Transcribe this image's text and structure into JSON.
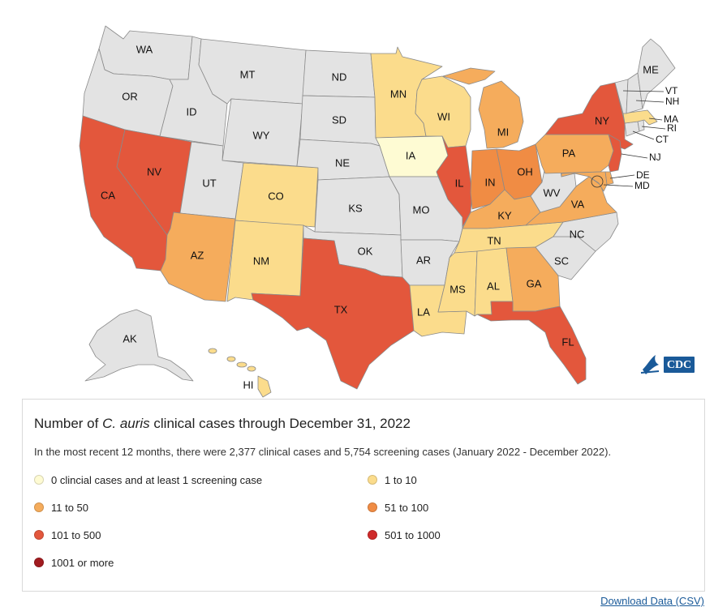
{
  "colors": {
    "no_data": "#e3e3e3",
    "zero_clinical": "#fefbd3",
    "range_1_10": "#fbdc8c",
    "range_11_50": "#f5ac5c",
    "range_51_100": "#f08c44",
    "range_101_500": "#e3573c",
    "range_501_1000": "#cf2a2a",
    "range_1001_plus": "#a11b1f"
  },
  "states": [
    {
      "abbr": "WA",
      "category": "none"
    },
    {
      "abbr": "OR",
      "category": "none"
    },
    {
      "abbr": "CA",
      "category": "101-500"
    },
    {
      "abbr": "NV",
      "category": "101-500"
    },
    {
      "abbr": "ID",
      "category": "none"
    },
    {
      "abbr": "MT",
      "category": "none"
    },
    {
      "abbr": "WY",
      "category": "none"
    },
    {
      "abbr": "UT",
      "category": "none"
    },
    {
      "abbr": "AZ",
      "category": "11-50"
    },
    {
      "abbr": "CO",
      "category": "1-10"
    },
    {
      "abbr": "NM",
      "category": "1-10"
    },
    {
      "abbr": "ND",
      "category": "none"
    },
    {
      "abbr": "SD",
      "category": "none"
    },
    {
      "abbr": "NE",
      "category": "none"
    },
    {
      "abbr": "KS",
      "category": "none"
    },
    {
      "abbr": "OK",
      "category": "none"
    },
    {
      "abbr": "TX",
      "category": "101-500"
    },
    {
      "abbr": "MN",
      "category": "1-10"
    },
    {
      "abbr": "IA",
      "category": "0 clinical"
    },
    {
      "abbr": "MO",
      "category": "none"
    },
    {
      "abbr": "AR",
      "category": "none"
    },
    {
      "abbr": "LA",
      "category": "1-10"
    },
    {
      "abbr": "WI",
      "category": "1-10"
    },
    {
      "abbr": "IL",
      "category": "101-500"
    },
    {
      "abbr": "MI",
      "category": "11-50"
    },
    {
      "abbr": "IN",
      "category": "51-100"
    },
    {
      "abbr": "OH",
      "category": "51-100"
    },
    {
      "abbr": "KY",
      "category": "11-50"
    },
    {
      "abbr": "TN",
      "category": "1-10"
    },
    {
      "abbr": "MS",
      "category": "1-10"
    },
    {
      "abbr": "AL",
      "category": "1-10"
    },
    {
      "abbr": "GA",
      "category": "11-50"
    },
    {
      "abbr": "FL",
      "category": "101-500"
    },
    {
      "abbr": "SC",
      "category": "none"
    },
    {
      "abbr": "NC",
      "category": "none"
    },
    {
      "abbr": "VA",
      "category": "11-50"
    },
    {
      "abbr": "WV",
      "category": "none"
    },
    {
      "abbr": "PA",
      "category": "11-50"
    },
    {
      "abbr": "NY",
      "category": "101-500"
    },
    {
      "abbr": "NJ",
      "category": "101-500"
    },
    {
      "abbr": "DE",
      "category": "11-50"
    },
    {
      "abbr": "MD",
      "category": "11-50"
    },
    {
      "abbr": "CT",
      "category": "none"
    },
    {
      "abbr": "RI",
      "category": "none"
    },
    {
      "abbr": "MA",
      "category": "1-10"
    },
    {
      "abbr": "VT",
      "category": "none"
    },
    {
      "abbr": "NH",
      "category": "none"
    },
    {
      "abbr": "ME",
      "category": "none"
    },
    {
      "abbr": "AK",
      "category": "none"
    },
    {
      "abbr": "HI",
      "category": "1-10"
    }
  ],
  "logo_text": "CDC",
  "legend": {
    "title_prefix": "Number of ",
    "title_italic": "C. auris",
    "title_suffix": " clinical cases through December 31, 2022",
    "subtitle": "In the most recent 12 months, there were 2,377 clinical cases and 5,754 screening cases (January 2022 - December 2022).",
    "items": [
      {
        "label": "0 clincial cases and at least 1 screening case",
        "color": "#fefbd3"
      },
      {
        "label": "1 to 10",
        "color": "#fbdc8c"
      },
      {
        "label": "11 to 50",
        "color": "#f5ac5c"
      },
      {
        "label": "51 to 100",
        "color": "#f08c44"
      },
      {
        "label": "101 to 500",
        "color": "#e3573c"
      },
      {
        "label": "501 to 1000",
        "color": "#cf2a2a"
      },
      {
        "label": "1001 or more",
        "color": "#a11b1f"
      }
    ]
  },
  "download_label": "Download Data (CSV)"
}
